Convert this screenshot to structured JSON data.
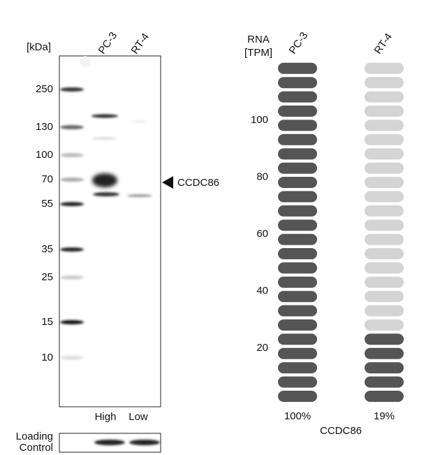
{
  "blot": {
    "unit_label": "[kDa]",
    "lanes": [
      "PC-3",
      "RT-4"
    ],
    "markers": [
      "250",
      "130",
      "100",
      "70",
      "55",
      "35",
      "25",
      "15",
      "10"
    ],
    "target": "CCDC86",
    "expression": [
      "High",
      "Low"
    ],
    "loading_control": [
      "Loading",
      "Control"
    ]
  },
  "rna": {
    "title": [
      "RNA",
      "[TPM]"
    ],
    "lanes": [
      "PC-3",
      "RT-4"
    ],
    "scale_ticks": [
      20,
      40,
      60,
      80,
      100
    ],
    "pill_count": 24,
    "filled_pills": [
      24,
      5
    ],
    "percent_labels": [
      "100%",
      "19%"
    ],
    "gene": "CCDC86"
  }
}
